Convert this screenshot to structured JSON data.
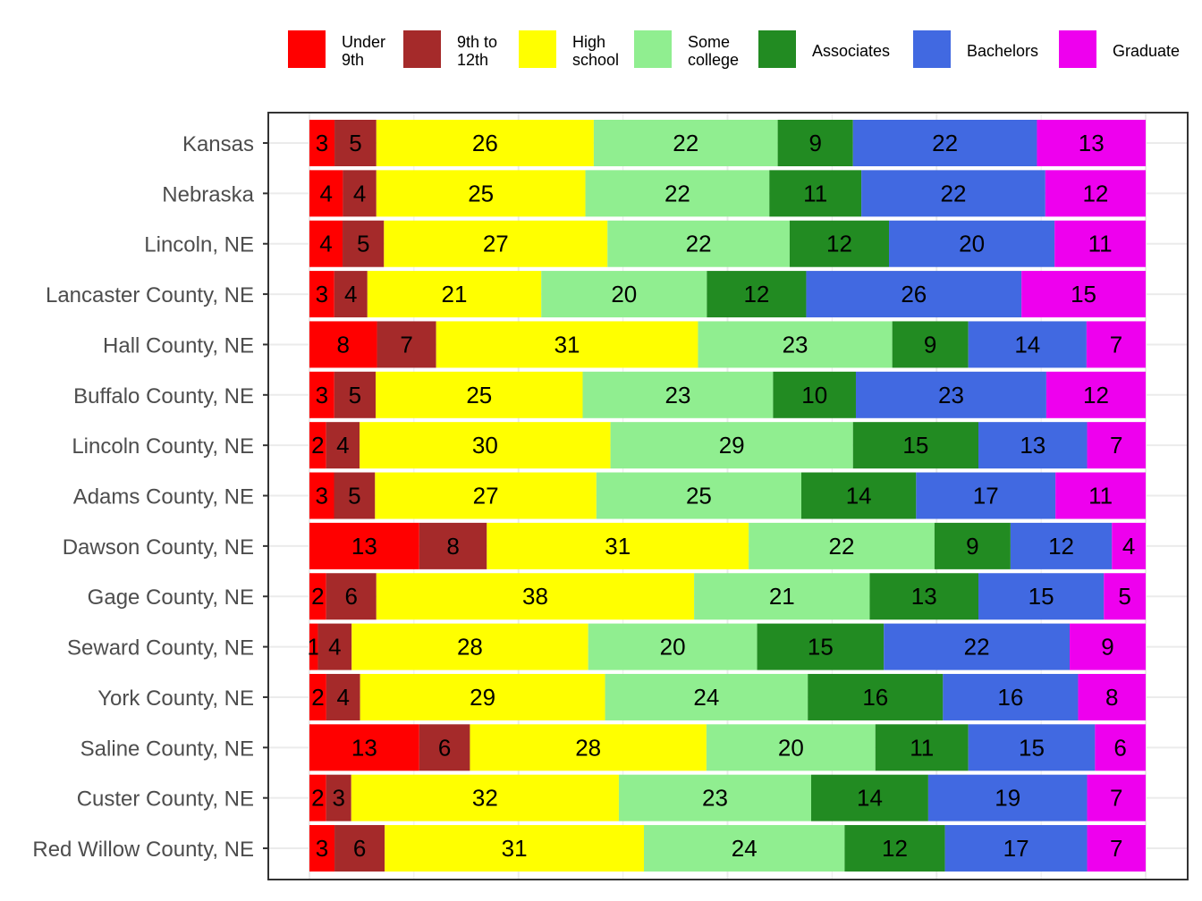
{
  "chart_data": {
    "type": "bar",
    "orientation": "horizontal",
    "stacked": true,
    "normalized": true,
    "grid": true,
    "legend_position": "top",
    "categories": [
      "Kansas",
      "Nebraska",
      "Lincoln, NE",
      "Lancaster County, NE",
      "Hall County, NE",
      "Buffalo County, NE",
      "Lincoln County, NE",
      "Adams County, NE",
      "Dawson County, NE",
      "Gage County, NE",
      "Seward County, NE",
      "York County, NE",
      "Saline County, NE",
      "Custer County, NE",
      "Red Willow County, NE"
    ],
    "series": [
      {
        "name": "Under 9th",
        "legend_lines": [
          "Under",
          "9th"
        ],
        "color": "#ff0000",
        "values": [
          3,
          4,
          4,
          3,
          8,
          3,
          2,
          3,
          13,
          2,
          1,
          2,
          13,
          2,
          3
        ]
      },
      {
        "name": "9th to 12th",
        "legend_lines": [
          "9th to",
          "12th"
        ],
        "color": "#a52a2a",
        "values": [
          5,
          4,
          5,
          4,
          7,
          5,
          4,
          5,
          8,
          6,
          4,
          4,
          6,
          3,
          6
        ]
      },
      {
        "name": "High school",
        "legend_lines": [
          "High",
          "school"
        ],
        "color": "#ffff00",
        "values": [
          26,
          25,
          27,
          21,
          31,
          25,
          30,
          27,
          31,
          38,
          28,
          29,
          28,
          32,
          31
        ]
      },
      {
        "name": "Some college",
        "legend_lines": [
          "Some",
          "college"
        ],
        "color": "#90ee90",
        "values": [
          22,
          22,
          22,
          20,
          23,
          23,
          29,
          25,
          22,
          21,
          20,
          24,
          20,
          23,
          24
        ]
      },
      {
        "name": "Associates",
        "legend_lines": [
          "Associates"
        ],
        "color": "#228b22",
        "values": [
          9,
          11,
          12,
          12,
          9,
          10,
          15,
          14,
          9,
          13,
          15,
          16,
          11,
          14,
          12
        ]
      },
      {
        "name": "Bachelors",
        "legend_lines": [
          "Bachelors"
        ],
        "color": "#4169e1",
        "values": [
          22,
          22,
          20,
          26,
          14,
          23,
          13,
          17,
          12,
          15,
          22,
          16,
          15,
          19,
          17
        ]
      },
      {
        "name": "Graduate",
        "legend_lines": [
          "Graduate"
        ],
        "color": "#ee00ee",
        "values": [
          13,
          12,
          11,
          15,
          7,
          12,
          7,
          11,
          4,
          5,
          9,
          8,
          6,
          7,
          7
        ]
      }
    ]
  }
}
